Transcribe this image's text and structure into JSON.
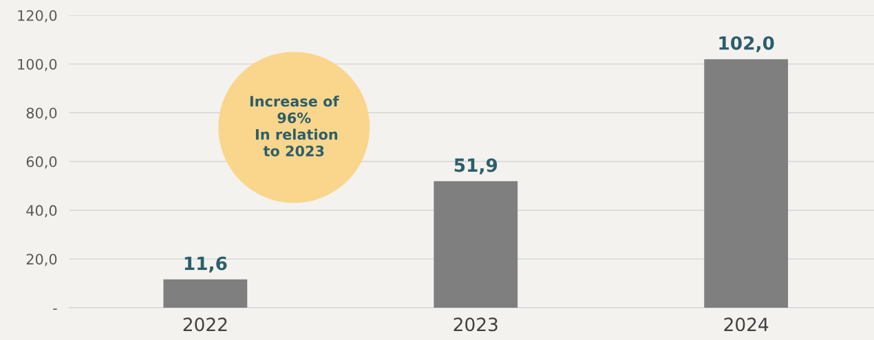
{
  "chart_data": {
    "type": "bar",
    "categories": [
      "2022",
      "2023",
      "2024"
    ],
    "values": [
      11.6,
      51.9,
      102.0
    ],
    "color": "#7f7f7f",
    "value_labels": [
      "11,6",
      "51,9",
      "102,0"
    ],
    "ylim": [
      0,
      120
    ],
    "yticks": [
      {
        "value": 0,
        "label": "-"
      },
      {
        "value": 20,
        "label": "20,0"
      },
      {
        "value": 40,
        "label": "40,0"
      },
      {
        "value": 60,
        "label": "60,0"
      },
      {
        "value": 80,
        "label": "80,0"
      },
      {
        "value": 100,
        "label": "100,0"
      },
      {
        "value": 120,
        "label": "120,0"
      }
    ],
    "grid": "y",
    "annotations": [
      "Increase of\n96%\n In relation\nto 2023"
    ]
  }
}
